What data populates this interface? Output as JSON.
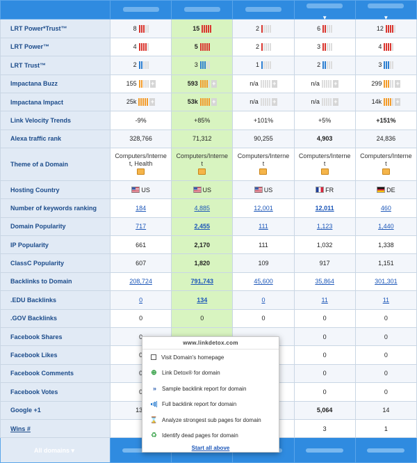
{
  "header": {
    "chevron": "▼"
  },
  "rows": [
    {
      "label": "LRT Power*Trust™",
      "c": [
        {
          "text": "8",
          "bar": "lrt-r",
          "fill": 3
        },
        {
          "text": "15",
          "bold": true,
          "bar": "lrt-r",
          "fill": 5
        },
        {
          "text": "2",
          "bar": "lrt-r",
          "fill": 1
        },
        {
          "text": "6",
          "bar": "lrt-r",
          "fill": 2
        },
        {
          "text": "12",
          "bar": "lrt-r",
          "fill": 4
        }
      ]
    },
    {
      "label": "LRT Power™",
      "c": [
        {
          "text": "4",
          "bar": "lrt-r",
          "fill": 4
        },
        {
          "text": "5",
          "bold": true,
          "bar": "lrt-r",
          "fill": 5
        },
        {
          "text": "2",
          "bar": "lrt-r",
          "fill": 1
        },
        {
          "text": "3",
          "bar": "lrt-r",
          "fill": 2
        },
        {
          "text": "4",
          "bar": "lrt-r",
          "fill": 4
        }
      ]
    },
    {
      "label": "LRT Trust™",
      "c": [
        {
          "text": "2",
          "bar": "lrt-b",
          "fill": 2
        },
        {
          "text": "3",
          "bar": "lrt-b",
          "fill": 3
        },
        {
          "text": "1",
          "bar": "lrt-b",
          "fill": 1
        },
        {
          "text": "2",
          "bar": "lrt-b",
          "fill": 2
        },
        {
          "text": "3",
          "bar": "lrt-b",
          "fill": 3
        }
      ]
    },
    {
      "label": "Impactana Buzz",
      "c": [
        {
          "text": "155",
          "bar": "imp",
          "fill": 2
        },
        {
          "text": "593",
          "bold": true,
          "bar": "imp",
          "fill": 4
        },
        {
          "text": "n/a",
          "bar": "imp",
          "fill": 0
        },
        {
          "text": "n/a",
          "bar": "imp",
          "fill": 0
        },
        {
          "text": "299",
          "bar": "imp",
          "fill": 3
        }
      ]
    },
    {
      "label": "Impactana Impact",
      "c": [
        {
          "text": "25k",
          "bar": "imp",
          "fill": 5
        },
        {
          "text": "53k",
          "bold": true,
          "bar": "imp",
          "fill": 5
        },
        {
          "text": "n/a",
          "bar": "imp",
          "fill": 0
        },
        {
          "text": "n/a",
          "bar": "imp",
          "fill": 0
        },
        {
          "text": "14k",
          "bar": "imp",
          "fill": 4
        }
      ]
    },
    {
      "label": "Link Velocity Trends",
      "c": [
        {
          "text": "-9%"
        },
        {
          "text": "+85%"
        },
        {
          "text": "+101%"
        },
        {
          "text": "+5%"
        },
        {
          "text": "+151%",
          "bold": true
        }
      ]
    },
    {
      "label": "Alexa traffic rank",
      "c": [
        {
          "text": "328,766"
        },
        {
          "text": "71,312"
        },
        {
          "text": "90,255"
        },
        {
          "text": "4,903",
          "bold": true
        },
        {
          "text": "24,836"
        }
      ]
    },
    {
      "label": "Theme of a Domain",
      "tall": true,
      "c": [
        {
          "text": "Computers/Interne",
          "text2": "t, Health",
          "folder": true
        },
        {
          "text": "Computers/Interne",
          "text2": "t",
          "folder": true
        },
        {
          "text": "Computers/Interne",
          "text2": "t",
          "folder": true
        },
        {
          "text": "Computers/Interne",
          "text2": "t",
          "folder": true
        },
        {
          "text": "Computers/Interne",
          "text2": "t",
          "folder": true
        }
      ]
    },
    {
      "label": "Hosting Country",
      "c": [
        {
          "text": "US",
          "flag": "us"
        },
        {
          "text": "US",
          "flag": "us"
        },
        {
          "text": "US",
          "flag": "us"
        },
        {
          "text": "FR",
          "flag": "fr"
        },
        {
          "text": "DE",
          "flag": "de"
        }
      ]
    },
    {
      "label": "Number of keywords ranking",
      "tall": true,
      "c": [
        {
          "text": "184",
          "link": true
        },
        {
          "text": "4,885",
          "link": true
        },
        {
          "text": "12,001",
          "link": true
        },
        {
          "text": "12,011",
          "link": true,
          "bold": true
        },
        {
          "text": "460",
          "link": true
        }
      ]
    },
    {
      "label": "Domain Popularity",
      "c": [
        {
          "text": "717",
          "link": true
        },
        {
          "text": "2,455",
          "link": true,
          "bold": true
        },
        {
          "text": "111",
          "link": true
        },
        {
          "text": "1,123",
          "link": true
        },
        {
          "text": "1,440",
          "link": true
        }
      ]
    },
    {
      "label": "IP Popularity",
      "c": [
        {
          "text": "661"
        },
        {
          "text": "2,170",
          "bold": true
        },
        {
          "text": "111"
        },
        {
          "text": "1,032"
        },
        {
          "text": "1,338"
        }
      ]
    },
    {
      "label": "ClassC Popularity",
      "c": [
        {
          "text": "607"
        },
        {
          "text": "1,820",
          "bold": true
        },
        {
          "text": "109"
        },
        {
          "text": "917"
        },
        {
          "text": "1,151"
        }
      ]
    },
    {
      "label": "Backlinks to Domain",
      "c": [
        {
          "text": "208,724",
          "link": true
        },
        {
          "text": "791,743",
          "link": true,
          "bold": true
        },
        {
          "text": "45,600",
          "link": true
        },
        {
          "text": "35,864",
          "link": true
        },
        {
          "text": "301,301",
          "link": true
        }
      ]
    },
    {
      "label": ".EDU Backlinks",
      "c": [
        {
          "text": "0",
          "link": true
        },
        {
          "text": "134",
          "link": true,
          "bold": true
        },
        {
          "text": "0",
          "link": true
        },
        {
          "text": "11",
          "link": true
        },
        {
          "text": "11",
          "link": true
        }
      ]
    },
    {
      "label": ".GOV Backlinks",
      "c": [
        {
          "text": "0"
        },
        {
          "text": "0"
        },
        {
          "text": "0"
        },
        {
          "text": "0"
        },
        {
          "text": "0"
        }
      ]
    },
    {
      "label": "Facebook Shares",
      "c": [
        {
          "text": "0"
        },
        {
          "text": ""
        },
        {
          "text": ""
        },
        {
          "text": "0"
        },
        {
          "text": "0"
        }
      ]
    },
    {
      "label": "Facebook Likes",
      "c": [
        {
          "text": "0"
        },
        {
          "text": ""
        },
        {
          "text": ""
        },
        {
          "text": "0"
        },
        {
          "text": "0"
        }
      ]
    },
    {
      "label": "Facebook Comments",
      "c": [
        {
          "text": "0"
        },
        {
          "text": ""
        },
        {
          "text": ""
        },
        {
          "text": "0"
        },
        {
          "text": "0"
        }
      ]
    },
    {
      "label": "Facebook Votes",
      "c": [
        {
          "text": "0"
        },
        {
          "text": ""
        },
        {
          "text": ""
        },
        {
          "text": "0"
        },
        {
          "text": "0"
        }
      ]
    },
    {
      "label": "Google +1",
      "c": [
        {
          "text": "134"
        },
        {
          "text": ""
        },
        {
          "text": ""
        },
        {
          "text": "5,064",
          "bold": true
        },
        {
          "text": "14"
        }
      ]
    },
    {
      "label": "Wins #",
      "link": true,
      "c": [
        {
          "text": ""
        },
        {
          "text": ""
        },
        {
          "text": ""
        },
        {
          "text": "3"
        },
        {
          "text": "1"
        }
      ]
    }
  ],
  "footer": {
    "all_domains": "All domains ▾"
  },
  "popup": {
    "title": "www.linkdetox.com",
    "items": [
      {
        "label": "Visit Domain's homepage",
        "icon": "external-link-icon"
      },
      {
        "label": "Link Detox® for domain",
        "icon": "plus-circle-icon"
      },
      {
        "label": "Sample backlink report for domain",
        "icon": "double-chevron-icon"
      },
      {
        "label": "Full backlink report for domain",
        "icon": "bar-chart-icon"
      },
      {
        "label": "Analyze strongest sub pages for domain",
        "icon": "hourglass-icon"
      },
      {
        "label": "Identify dead pages for domain",
        "icon": "recycle-icon"
      }
    ],
    "start_all": "Start all above"
  }
}
